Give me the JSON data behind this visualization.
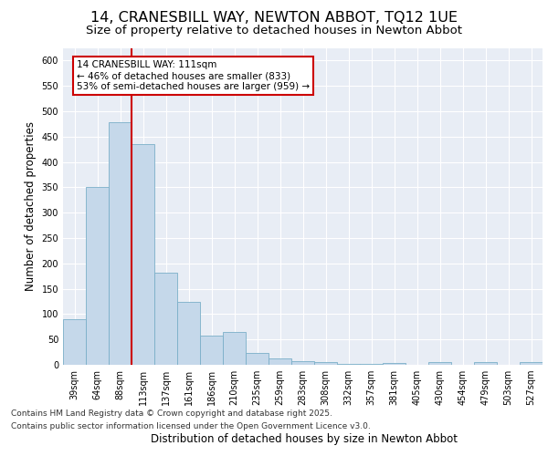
{
  "title_line1": "14, CRANESBILL WAY, NEWTON ABBOT, TQ12 1UE",
  "title_line2": "Size of property relative to detached houses in Newton Abbot",
  "xlabel": "Distribution of detached houses by size in Newton Abbot",
  "ylabel": "Number of detached properties",
  "categories": [
    "39sqm",
    "64sqm",
    "88sqm",
    "113sqm",
    "137sqm",
    "161sqm",
    "186sqm",
    "210sqm",
    "235sqm",
    "259sqm",
    "283sqm",
    "308sqm",
    "332sqm",
    "357sqm",
    "381sqm",
    "405sqm",
    "430sqm",
    "454sqm",
    "479sqm",
    "503sqm",
    "527sqm"
  ],
  "values": [
    90,
    350,
    478,
    435,
    182,
    125,
    57,
    65,
    23,
    12,
    8,
    5,
    2,
    1,
    3,
    0,
    5,
    0,
    5,
    0,
    6
  ],
  "bar_color": "#c5d8ea",
  "bar_edge_color": "#7aafc8",
  "background_color": "#e8edf5",
  "grid_color": "#ffffff",
  "vline_color": "#cc0000",
  "annotation_text": "14 CRANESBILL WAY: 111sqm\n← 46% of detached houses are smaller (833)\n53% of semi-detached houses are larger (959) →",
  "annotation_box_color": "#cc0000",
  "ylim": [
    0,
    625
  ],
  "yticks": [
    0,
    50,
    100,
    150,
    200,
    250,
    300,
    350,
    400,
    450,
    500,
    550,
    600
  ],
  "footer_line1": "Contains HM Land Registry data © Crown copyright and database right 2025.",
  "footer_line2": "Contains public sector information licensed under the Open Government Licence v3.0.",
  "title_fontsize": 11.5,
  "subtitle_fontsize": 9.5,
  "label_fontsize": 8.5,
  "tick_fontsize": 7,
  "footer_fontsize": 6.5,
  "annot_fontsize": 7.5
}
